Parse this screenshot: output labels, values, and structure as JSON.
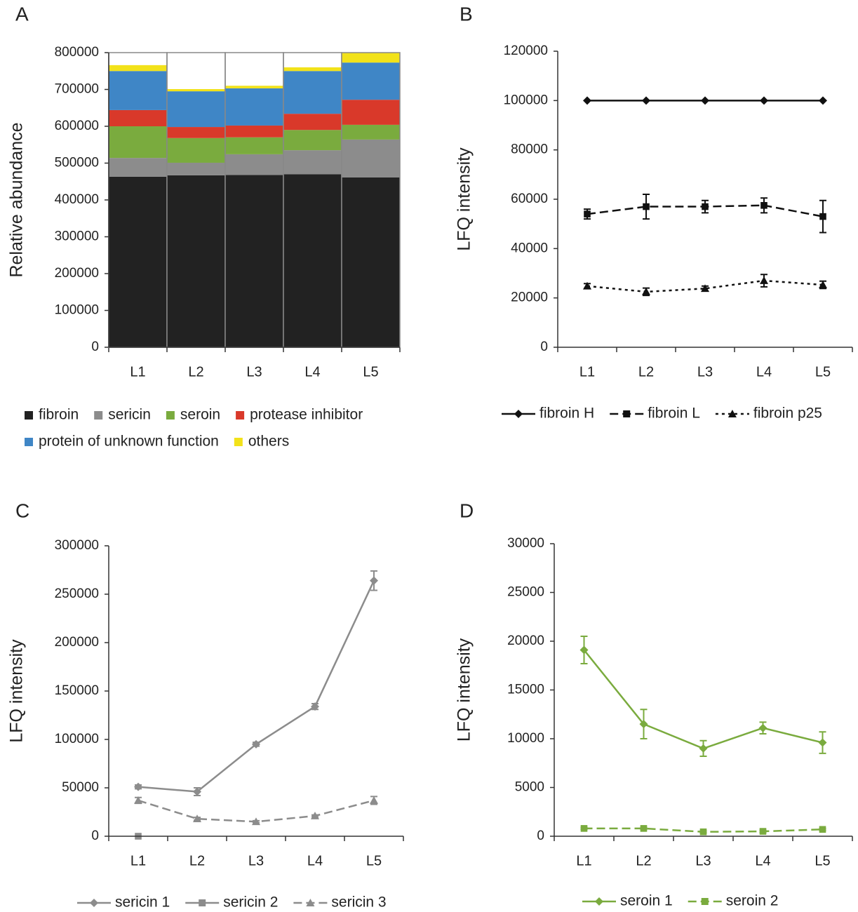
{
  "chart_data": [
    {
      "panel": "A",
      "type": "stacked_bar",
      "y_label": "Relative abundance",
      "categories": [
        "L1",
        "L2",
        "L3",
        "L4",
        "L5"
      ],
      "ylim": [
        0,
        800000
      ],
      "yticks": [
        0,
        100000,
        200000,
        300000,
        400000,
        500000,
        600000,
        700000,
        800000
      ],
      "series": [
        {
          "name": "fibroin",
          "color": "#222222",
          "text_color": "#222222",
          "values": [
            463000,
            467000,
            468000,
            470000,
            461000
          ]
        },
        {
          "name": "sericin",
          "color": "#8c8c8c",
          "text_color": "#8c8c8c",
          "values": [
            51000,
            34000,
            56000,
            65000,
            103000
          ]
        },
        {
          "name": "seroin",
          "color": "#7aab3e",
          "text_color": "#7aab3e",
          "values": [
            86000,
            67000,
            46000,
            55000,
            40000
          ]
        },
        {
          "name": "protease inhibitor",
          "color": "#d9392a",
          "text_color": "#d9392a",
          "values": [
            44000,
            30000,
            32000,
            44000,
            68000
          ]
        },
        {
          "name": "protein of unknown function",
          "color": "#3f86c6",
          "text_color": "#3f86c6",
          "values": [
            106000,
            97000,
            101000,
            116000,
            101000
          ]
        },
        {
          "name": "others",
          "color": "#f2e21a",
          "text_color": "#e8c81a",
          "values": [
            16000,
            6000,
            7000,
            10000,
            27000
          ]
        }
      ]
    },
    {
      "panel": "B",
      "type": "line",
      "y_label": "LFQ intensity",
      "categories": [
        "L1",
        "L2",
        "L3",
        "L4",
        "L5"
      ],
      "ylim": [
        0,
        120000
      ],
      "yticks": [
        0,
        20000,
        40000,
        60000,
        80000,
        100000,
        120000
      ],
      "series": [
        {
          "name": "fibroin H",
          "color": "#111111",
          "line_style": "solid",
          "marker": "diamond",
          "values": [
            100000,
            100000,
            100000,
            100000,
            100000
          ]
        },
        {
          "name": "fibroin L",
          "color": "#111111",
          "line_style": "dashed",
          "marker": "square",
          "values": [
            54000,
            57000,
            57000,
            57500,
            53000
          ],
          "errors": [
            2000,
            5000,
            2500,
            3000,
            6500
          ]
        },
        {
          "name": "fibroin p25",
          "color": "#111111",
          "line_style": "dotted",
          "marker": "triangle",
          "values": [
            24800,
            22500,
            23800,
            27000,
            25300
          ],
          "errors": [
            1000,
            1500,
            1000,
            2500,
            1500
          ]
        }
      ]
    },
    {
      "panel": "C",
      "type": "line",
      "y_label": "LFQ intensity",
      "categories": [
        "L1",
        "L2",
        "L3",
        "L4",
        "L5"
      ],
      "ylim": [
        0,
        300000
      ],
      "yticks": [
        0,
        50000,
        100000,
        150000,
        200000,
        250000,
        300000
      ],
      "series": [
        {
          "name": "sericin 1",
          "color": "#8c8c8c",
          "line_style": "solid",
          "marker": "diamond",
          "values": [
            51000,
            46000,
            95000,
            134000,
            264000
          ],
          "errors": [
            2000,
            4000,
            2000,
            3000,
            10000
          ]
        },
        {
          "name": "sericin 2",
          "color": "#8c8c8c",
          "line_style": "solid",
          "marker": "square",
          "values": [
            0,
            null,
            null,
            null,
            null
          ]
        },
        {
          "name": "sericin 3",
          "color": "#8c8c8c",
          "line_style": "dashed",
          "marker": "triangle",
          "values": [
            37000,
            18000,
            15000,
            21000,
            37000
          ],
          "errors": [
            3000,
            1500,
            1000,
            1000,
            4000
          ]
        }
      ]
    },
    {
      "panel": "D",
      "type": "line",
      "y_label": "LFQ intensity",
      "categories": [
        "L1",
        "L2",
        "L3",
        "L4",
        "L5"
      ],
      "ylim": [
        0,
        30000
      ],
      "yticks": [
        0,
        5000,
        10000,
        15000,
        20000,
        25000,
        30000
      ],
      "series": [
        {
          "name": "seroin 1",
          "color": "#7aab3e",
          "line_style": "solid",
          "marker": "diamond",
          "values": [
            19100,
            11500,
            9000,
            11100,
            9600
          ],
          "errors": [
            1400,
            1500,
            800,
            600,
            1100
          ]
        },
        {
          "name": "seroin 2",
          "color": "#7aab3e",
          "line_style": "dashed",
          "marker": "square",
          "values": [
            800,
            800,
            450,
            500,
            700
          ],
          "errors": [
            100,
            100,
            100,
            100,
            100
          ]
        }
      ]
    }
  ]
}
